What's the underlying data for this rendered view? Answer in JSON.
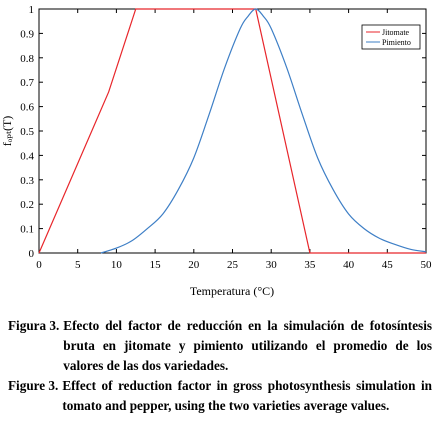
{
  "chart_data": {
    "type": "line",
    "title": "",
    "xlabel": "Temperatura (°C)",
    "ylabel": "fₒₚₜ(T)",
    "xlim": [
      0,
      50
    ],
    "ylim": [
      0,
      1
    ],
    "xticks": [
      "0",
      "5",
      "10",
      "15",
      "20",
      "25",
      "30",
      "35",
      "40",
      "45",
      "50"
    ],
    "yticks": [
      "0",
      "0.1",
      "0.2",
      "0.3",
      "0.4",
      "0.5",
      "0.6",
      "0.7",
      "0.8",
      "0.9",
      "1"
    ],
    "grid": false,
    "legend_position": "top-right",
    "series": [
      {
        "name": "Jitomate",
        "color": "#e8262b",
        "x": [
          0,
          9,
          12.5,
          28,
          35,
          50
        ],
        "y": [
          0,
          0.66,
          1,
          1,
          0,
          0
        ]
      },
      {
        "name": "Pimiento",
        "color": "#3e7fc6",
        "x": [
          8,
          10,
          12,
          14,
          16,
          18,
          20,
          22,
          24,
          26,
          27,
          28,
          29,
          30,
          32,
          34,
          36,
          38,
          40,
          42,
          44,
          46,
          48,
          50
        ],
        "y": [
          0,
          0.02,
          0.05,
          0.1,
          0.16,
          0.26,
          0.39,
          0.57,
          0.76,
          0.92,
          0.97,
          1,
          0.97,
          0.92,
          0.76,
          0.57,
          0.39,
          0.26,
          0.16,
          0.1,
          0.06,
          0.035,
          0.015,
          0.005
        ]
      }
    ]
  },
  "caption": {
    "es_label": "Figura 3.",
    "es_text": "Efecto del factor de reducción en la simulación de fotosíntesis bruta en jitomate y pimiento utilizando el promedio de los valores de las dos variedades.",
    "en_label": "Figure 3.",
    "en_text": "Effect of reduction factor in gross photosynthesis simulation in tomato and pepper, using the two varieties average values."
  }
}
